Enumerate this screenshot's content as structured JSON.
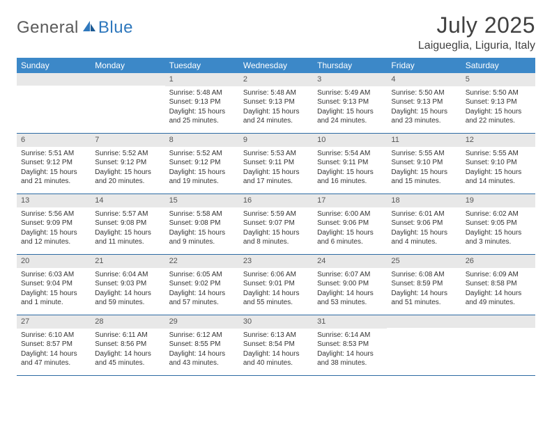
{
  "brand": {
    "part1": "General",
    "part2": "Blue"
  },
  "title": "July 2025",
  "location": "Laigueglia, Liguria, Italy",
  "colors": {
    "header_bg": "#3c88c8",
    "row_border": "#2c6aa3",
    "daynum_bg": "#e8e8e8",
    "text": "#333333",
    "brand_gray": "#5a5a5a",
    "brand_blue": "#2f78bd"
  },
  "daysOfWeek": [
    "Sunday",
    "Monday",
    "Tuesday",
    "Wednesday",
    "Thursday",
    "Friday",
    "Saturday"
  ],
  "weeks": [
    [
      null,
      null,
      {
        "n": "1",
        "sunrise": "5:48 AM",
        "sunset": "9:13 PM",
        "daylight": "15 hours and 25 minutes."
      },
      {
        "n": "2",
        "sunrise": "5:48 AM",
        "sunset": "9:13 PM",
        "daylight": "15 hours and 24 minutes."
      },
      {
        "n": "3",
        "sunrise": "5:49 AM",
        "sunset": "9:13 PM",
        "daylight": "15 hours and 24 minutes."
      },
      {
        "n": "4",
        "sunrise": "5:50 AM",
        "sunset": "9:13 PM",
        "daylight": "15 hours and 23 minutes."
      },
      {
        "n": "5",
        "sunrise": "5:50 AM",
        "sunset": "9:13 PM",
        "daylight": "15 hours and 22 minutes."
      }
    ],
    [
      {
        "n": "6",
        "sunrise": "5:51 AM",
        "sunset": "9:12 PM",
        "daylight": "15 hours and 21 minutes."
      },
      {
        "n": "7",
        "sunrise": "5:52 AM",
        "sunset": "9:12 PM",
        "daylight": "15 hours and 20 minutes."
      },
      {
        "n": "8",
        "sunrise": "5:52 AM",
        "sunset": "9:12 PM",
        "daylight": "15 hours and 19 minutes."
      },
      {
        "n": "9",
        "sunrise": "5:53 AM",
        "sunset": "9:11 PM",
        "daylight": "15 hours and 17 minutes."
      },
      {
        "n": "10",
        "sunrise": "5:54 AM",
        "sunset": "9:11 PM",
        "daylight": "15 hours and 16 minutes."
      },
      {
        "n": "11",
        "sunrise": "5:55 AM",
        "sunset": "9:10 PM",
        "daylight": "15 hours and 15 minutes."
      },
      {
        "n": "12",
        "sunrise": "5:55 AM",
        "sunset": "9:10 PM",
        "daylight": "15 hours and 14 minutes."
      }
    ],
    [
      {
        "n": "13",
        "sunrise": "5:56 AM",
        "sunset": "9:09 PM",
        "daylight": "15 hours and 12 minutes."
      },
      {
        "n": "14",
        "sunrise": "5:57 AM",
        "sunset": "9:08 PM",
        "daylight": "15 hours and 11 minutes."
      },
      {
        "n": "15",
        "sunrise": "5:58 AM",
        "sunset": "9:08 PM",
        "daylight": "15 hours and 9 minutes."
      },
      {
        "n": "16",
        "sunrise": "5:59 AM",
        "sunset": "9:07 PM",
        "daylight": "15 hours and 8 minutes."
      },
      {
        "n": "17",
        "sunrise": "6:00 AM",
        "sunset": "9:06 PM",
        "daylight": "15 hours and 6 minutes."
      },
      {
        "n": "18",
        "sunrise": "6:01 AM",
        "sunset": "9:06 PM",
        "daylight": "15 hours and 4 minutes."
      },
      {
        "n": "19",
        "sunrise": "6:02 AM",
        "sunset": "9:05 PM",
        "daylight": "15 hours and 3 minutes."
      }
    ],
    [
      {
        "n": "20",
        "sunrise": "6:03 AM",
        "sunset": "9:04 PM",
        "daylight": "15 hours and 1 minute."
      },
      {
        "n": "21",
        "sunrise": "6:04 AM",
        "sunset": "9:03 PM",
        "daylight": "14 hours and 59 minutes."
      },
      {
        "n": "22",
        "sunrise": "6:05 AM",
        "sunset": "9:02 PM",
        "daylight": "14 hours and 57 minutes."
      },
      {
        "n": "23",
        "sunrise": "6:06 AM",
        "sunset": "9:01 PM",
        "daylight": "14 hours and 55 minutes."
      },
      {
        "n": "24",
        "sunrise": "6:07 AM",
        "sunset": "9:00 PM",
        "daylight": "14 hours and 53 minutes."
      },
      {
        "n": "25",
        "sunrise": "6:08 AM",
        "sunset": "8:59 PM",
        "daylight": "14 hours and 51 minutes."
      },
      {
        "n": "26",
        "sunrise": "6:09 AM",
        "sunset": "8:58 PM",
        "daylight": "14 hours and 49 minutes."
      }
    ],
    [
      {
        "n": "27",
        "sunrise": "6:10 AM",
        "sunset": "8:57 PM",
        "daylight": "14 hours and 47 minutes."
      },
      {
        "n": "28",
        "sunrise": "6:11 AM",
        "sunset": "8:56 PM",
        "daylight": "14 hours and 45 minutes."
      },
      {
        "n": "29",
        "sunrise": "6:12 AM",
        "sunset": "8:55 PM",
        "daylight": "14 hours and 43 minutes."
      },
      {
        "n": "30",
        "sunrise": "6:13 AM",
        "sunset": "8:54 PM",
        "daylight": "14 hours and 40 minutes."
      },
      {
        "n": "31",
        "sunrise": "6:14 AM",
        "sunset": "8:53 PM",
        "daylight": "14 hours and 38 minutes."
      },
      null,
      null
    ]
  ],
  "labels": {
    "sunrise": "Sunrise:",
    "sunset": "Sunset:",
    "daylight": "Daylight:"
  }
}
